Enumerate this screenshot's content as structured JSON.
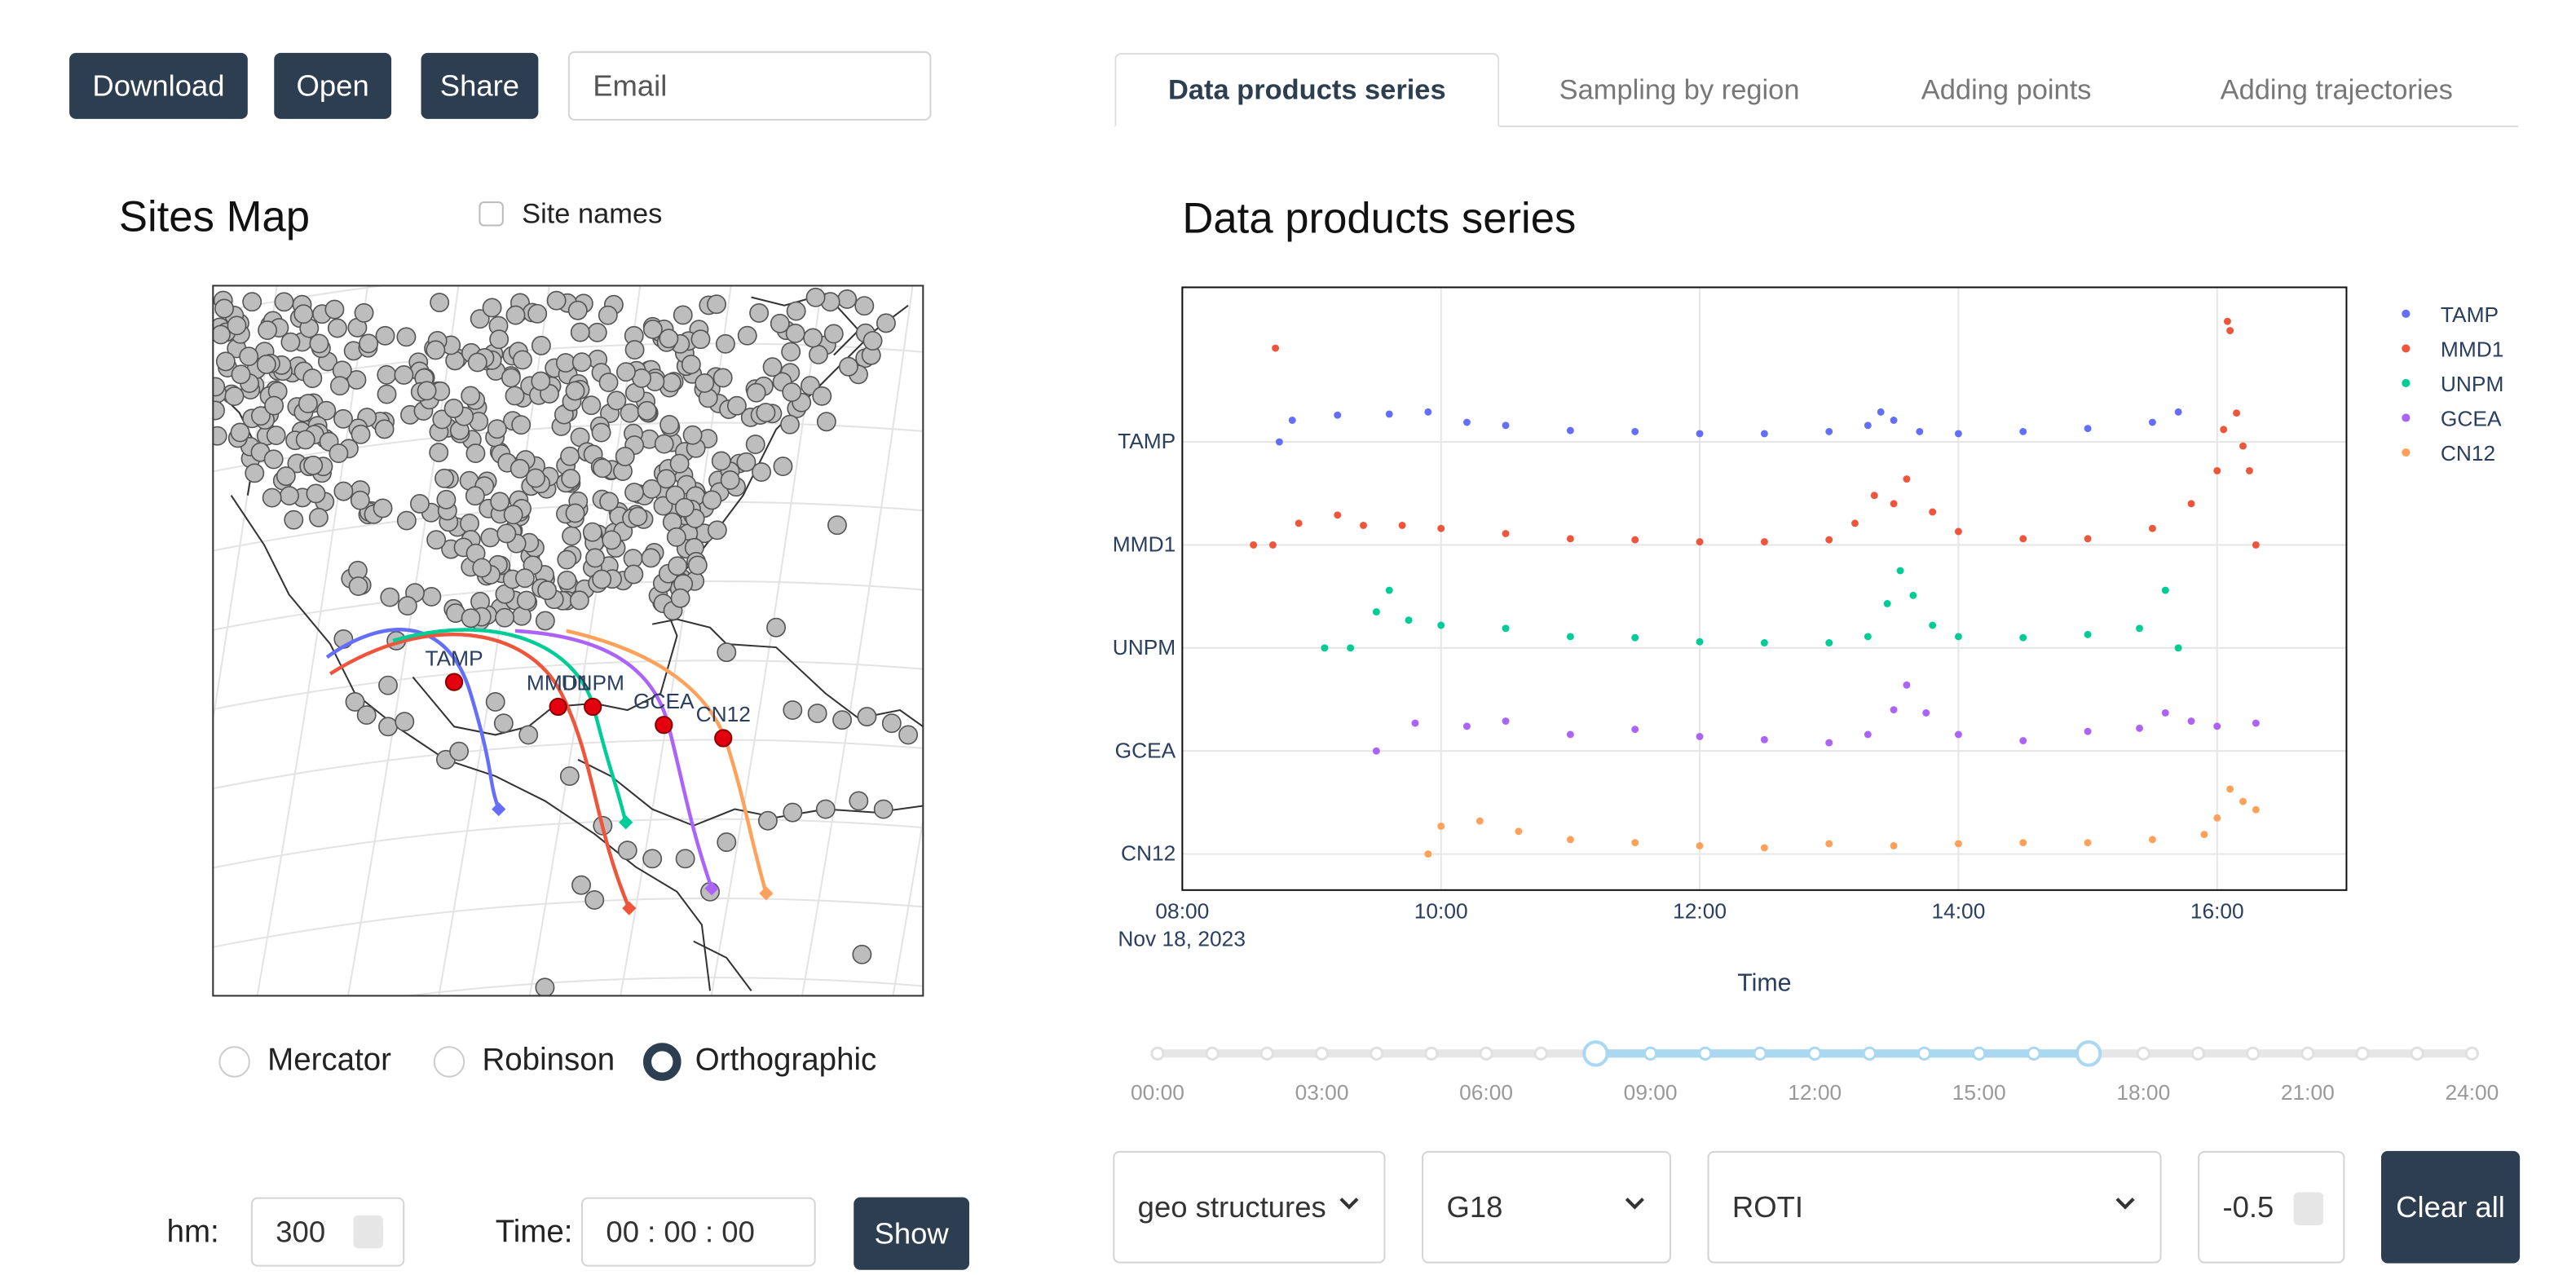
{
  "toolbar": {
    "buttons": [
      "Download",
      "Open",
      "Share"
    ],
    "email_placeholder": "Email"
  },
  "tabs": {
    "items": [
      "Data products series",
      "Sampling by region",
      "Adding points",
      "Adding trajectories"
    ],
    "active": 0
  },
  "map": {
    "title": "Sites Map",
    "site_names_label": "Site names",
    "site_names_checked": false,
    "sites": [
      "TAMP",
      "MMD1",
      "UNPM",
      "GCEA",
      "CN12"
    ],
    "projections": [
      "Mercator",
      "Robinson",
      "Orthographic"
    ],
    "selected_projection": 2
  },
  "controls": {
    "hm_label": "hm:",
    "hm_value": "300",
    "time_label": "Time:",
    "time_value": "00 : 00 : 00",
    "show_button": "Show",
    "selects": [
      "geo structures",
      "G18",
      "ROTI"
    ],
    "number_value": "-0.5",
    "clear_button": "Clear all"
  },
  "chart_data": {
    "type": "scatter",
    "title": "Data products series",
    "x_label": "Time",
    "x_date_label": "Nov 18, 2023",
    "xlim": [
      8,
      17
    ],
    "xticks": [
      {
        "value": 8,
        "label": "08:00"
      },
      {
        "value": 10,
        "label": "10:00"
      },
      {
        "value": 12,
        "label": "12:00"
      },
      {
        "value": 14,
        "label": "14:00"
      },
      {
        "value": 16,
        "label": "16:00"
      }
    ],
    "ylim": [
      -0.35,
      5.5
    ],
    "yticks": [
      {
        "value": 4,
        "label": "TAMP"
      },
      {
        "value": 3,
        "label": "MMD1"
      },
      {
        "value": 2,
        "label": "UNPM"
      },
      {
        "value": 1,
        "label": "GCEA"
      },
      {
        "value": 0,
        "label": "CN12"
      }
    ],
    "grid": true,
    "legend": "top-right",
    "series": [
      {
        "name": "TAMP",
        "color": "#636efa",
        "x": [
          8.75,
          8.85,
          9.2,
          9.6,
          9.9,
          10.2,
          10.5,
          11,
          11.5,
          12,
          12.5,
          13,
          13.3,
          13.4,
          13.5,
          13.7,
          14,
          14.5,
          15,
          15.5,
          15.7
        ],
        "values": [
          4.0,
          4.21,
          4.26,
          4.27,
          4.29,
          4.19,
          4.16,
          4.11,
          4.1,
          4.08,
          4.08,
          4.1,
          4.16,
          4.29,
          4.21,
          4.1,
          4.08,
          4.1,
          4.13,
          4.19,
          4.29
        ]
      },
      {
        "name": "MMD1",
        "color": "#ef553b",
        "x": [
          8.55,
          8.7,
          8.72,
          8.9,
          9.2,
          9.4,
          9.7,
          10,
          10.5,
          11,
          11.5,
          12,
          12.5,
          13,
          13.2,
          13.35,
          13.5,
          13.6,
          13.8,
          14,
          14.5,
          15,
          15.5,
          15.8,
          16,
          16.05,
          16.08,
          16.1,
          16.15,
          16.2,
          16.25,
          16.3
        ],
        "values": [
          3.0,
          3.0,
          4.91,
          3.21,
          3.29,
          3.19,
          3.19,
          3.16,
          3.11,
          3.06,
          3.05,
          3.03,
          3.03,
          3.05,
          3.21,
          3.48,
          3.4,
          3.64,
          3.32,
          3.13,
          3.06,
          3.06,
          3.16,
          3.4,
          3.72,
          4.12,
          5.17,
          5.08,
          4.28,
          3.96,
          3.72,
          3.0
        ]
      },
      {
        "name": "UNPM",
        "color": "#00cc96",
        "x": [
          9.1,
          9.3,
          9.5,
          9.6,
          9.75,
          10,
          10.5,
          11,
          11.5,
          12,
          12.5,
          13,
          13.3,
          13.45,
          13.55,
          13.65,
          13.8,
          14,
          14.5,
          15,
          15.4,
          15.6,
          15.7
        ],
        "values": [
          2.0,
          2.0,
          2.35,
          2.56,
          2.27,
          2.22,
          2.19,
          2.11,
          2.1,
          2.06,
          2.05,
          2.05,
          2.11,
          2.43,
          2.75,
          2.51,
          2.22,
          2.11,
          2.1,
          2.13,
          2.19,
          2.56,
          2.0
        ]
      },
      {
        "name": "GCEA",
        "color": "#ab63fa",
        "x": [
          9.5,
          9.8,
          10.2,
          10.5,
          11,
          11.5,
          12,
          12.5,
          13,
          13.3,
          13.5,
          13.6,
          13.75,
          14,
          14.5,
          15,
          15.4,
          15.6,
          15.8,
          16,
          16.3
        ],
        "values": [
          1.0,
          1.27,
          1.24,
          1.29,
          1.16,
          1.21,
          1.14,
          1.11,
          1.08,
          1.16,
          1.4,
          1.64,
          1.37,
          1.16,
          1.1,
          1.19,
          1.22,
          1.37,
          1.29,
          1.24,
          1.27
        ]
      },
      {
        "name": "CN12",
        "color": "#ffa15a",
        "x": [
          9.9,
          10.0,
          10.3,
          10.6,
          11,
          11.5,
          12,
          12.5,
          13,
          13.5,
          14,
          14.5,
          15,
          15.5,
          15.9,
          16.0,
          16.1,
          16.2,
          16.3
        ],
        "values": [
          0.0,
          0.27,
          0.32,
          0.22,
          0.14,
          0.11,
          0.08,
          0.06,
          0.1,
          0.08,
          0.1,
          0.11,
          0.11,
          0.14,
          0.19,
          0.35,
          0.63,
          0.51,
          0.43
        ]
      }
    ]
  },
  "slider": {
    "min": 0,
    "max": 24,
    "range": [
      8,
      17
    ],
    "ticks": [
      {
        "value": 0,
        "label": "00:00"
      },
      {
        "value": 3,
        "label": "03:00"
      },
      {
        "value": 6,
        "label": "06:00"
      },
      {
        "value": 9,
        "label": "09:00"
      },
      {
        "value": 12,
        "label": "12:00"
      },
      {
        "value": 15,
        "label": "15:00"
      },
      {
        "value": 18,
        "label": "18:00"
      },
      {
        "value": 21,
        "label": "21:00"
      },
      {
        "value": 24,
        "label": "24:00"
      }
    ]
  }
}
